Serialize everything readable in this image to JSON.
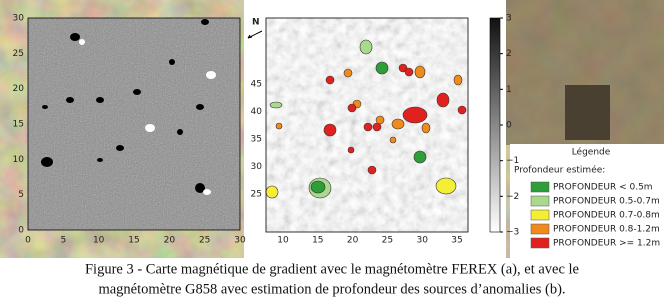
{
  "figure": {
    "panel_a": {
      "xticks": [
        "0",
        "5",
        "10",
        "15",
        "20",
        "25",
        "30"
      ],
      "yticks": [
        "0",
        "5",
        "10",
        "15",
        "20",
        "25",
        "30"
      ]
    },
    "panel_b": {
      "north": "N",
      "xticks": [
        "10",
        "15",
        "20",
        "25",
        "30",
        "35"
      ],
      "yticks": [
        "25",
        "30",
        "35",
        "40",
        "45"
      ],
      "colorbar_ticks": [
        "3",
        "2",
        "1",
        "0",
        "−1",
        "−2",
        "−3"
      ]
    },
    "legend": {
      "title": "Légende",
      "subtitle": "Profondeur estimée:",
      "items": [
        {
          "label": "PROFONDEUR < 0.5m",
          "color": "#2e9e3a"
        },
        {
          "label": "PROFONDEUR 0.5-0.7m",
          "color": "#a9d98c"
        },
        {
          "label": "PROFONDEUR 0.7-0.8m",
          "color": "#f4ef34"
        },
        {
          "label": "PROFONDEUR 0.8-1.2m",
          "color": "#f08a1c"
        },
        {
          "label": "PROFONDEUR >= 1.2m",
          "color": "#e0211d"
        }
      ]
    },
    "caption": [
      "Figure 3 - Carte magnétique de gradient avec le magnétomètre FEREX (a), et avec le",
      "magnétomètre G858 avec estimation de profondeur des sources d’anomalies (b)."
    ]
  }
}
